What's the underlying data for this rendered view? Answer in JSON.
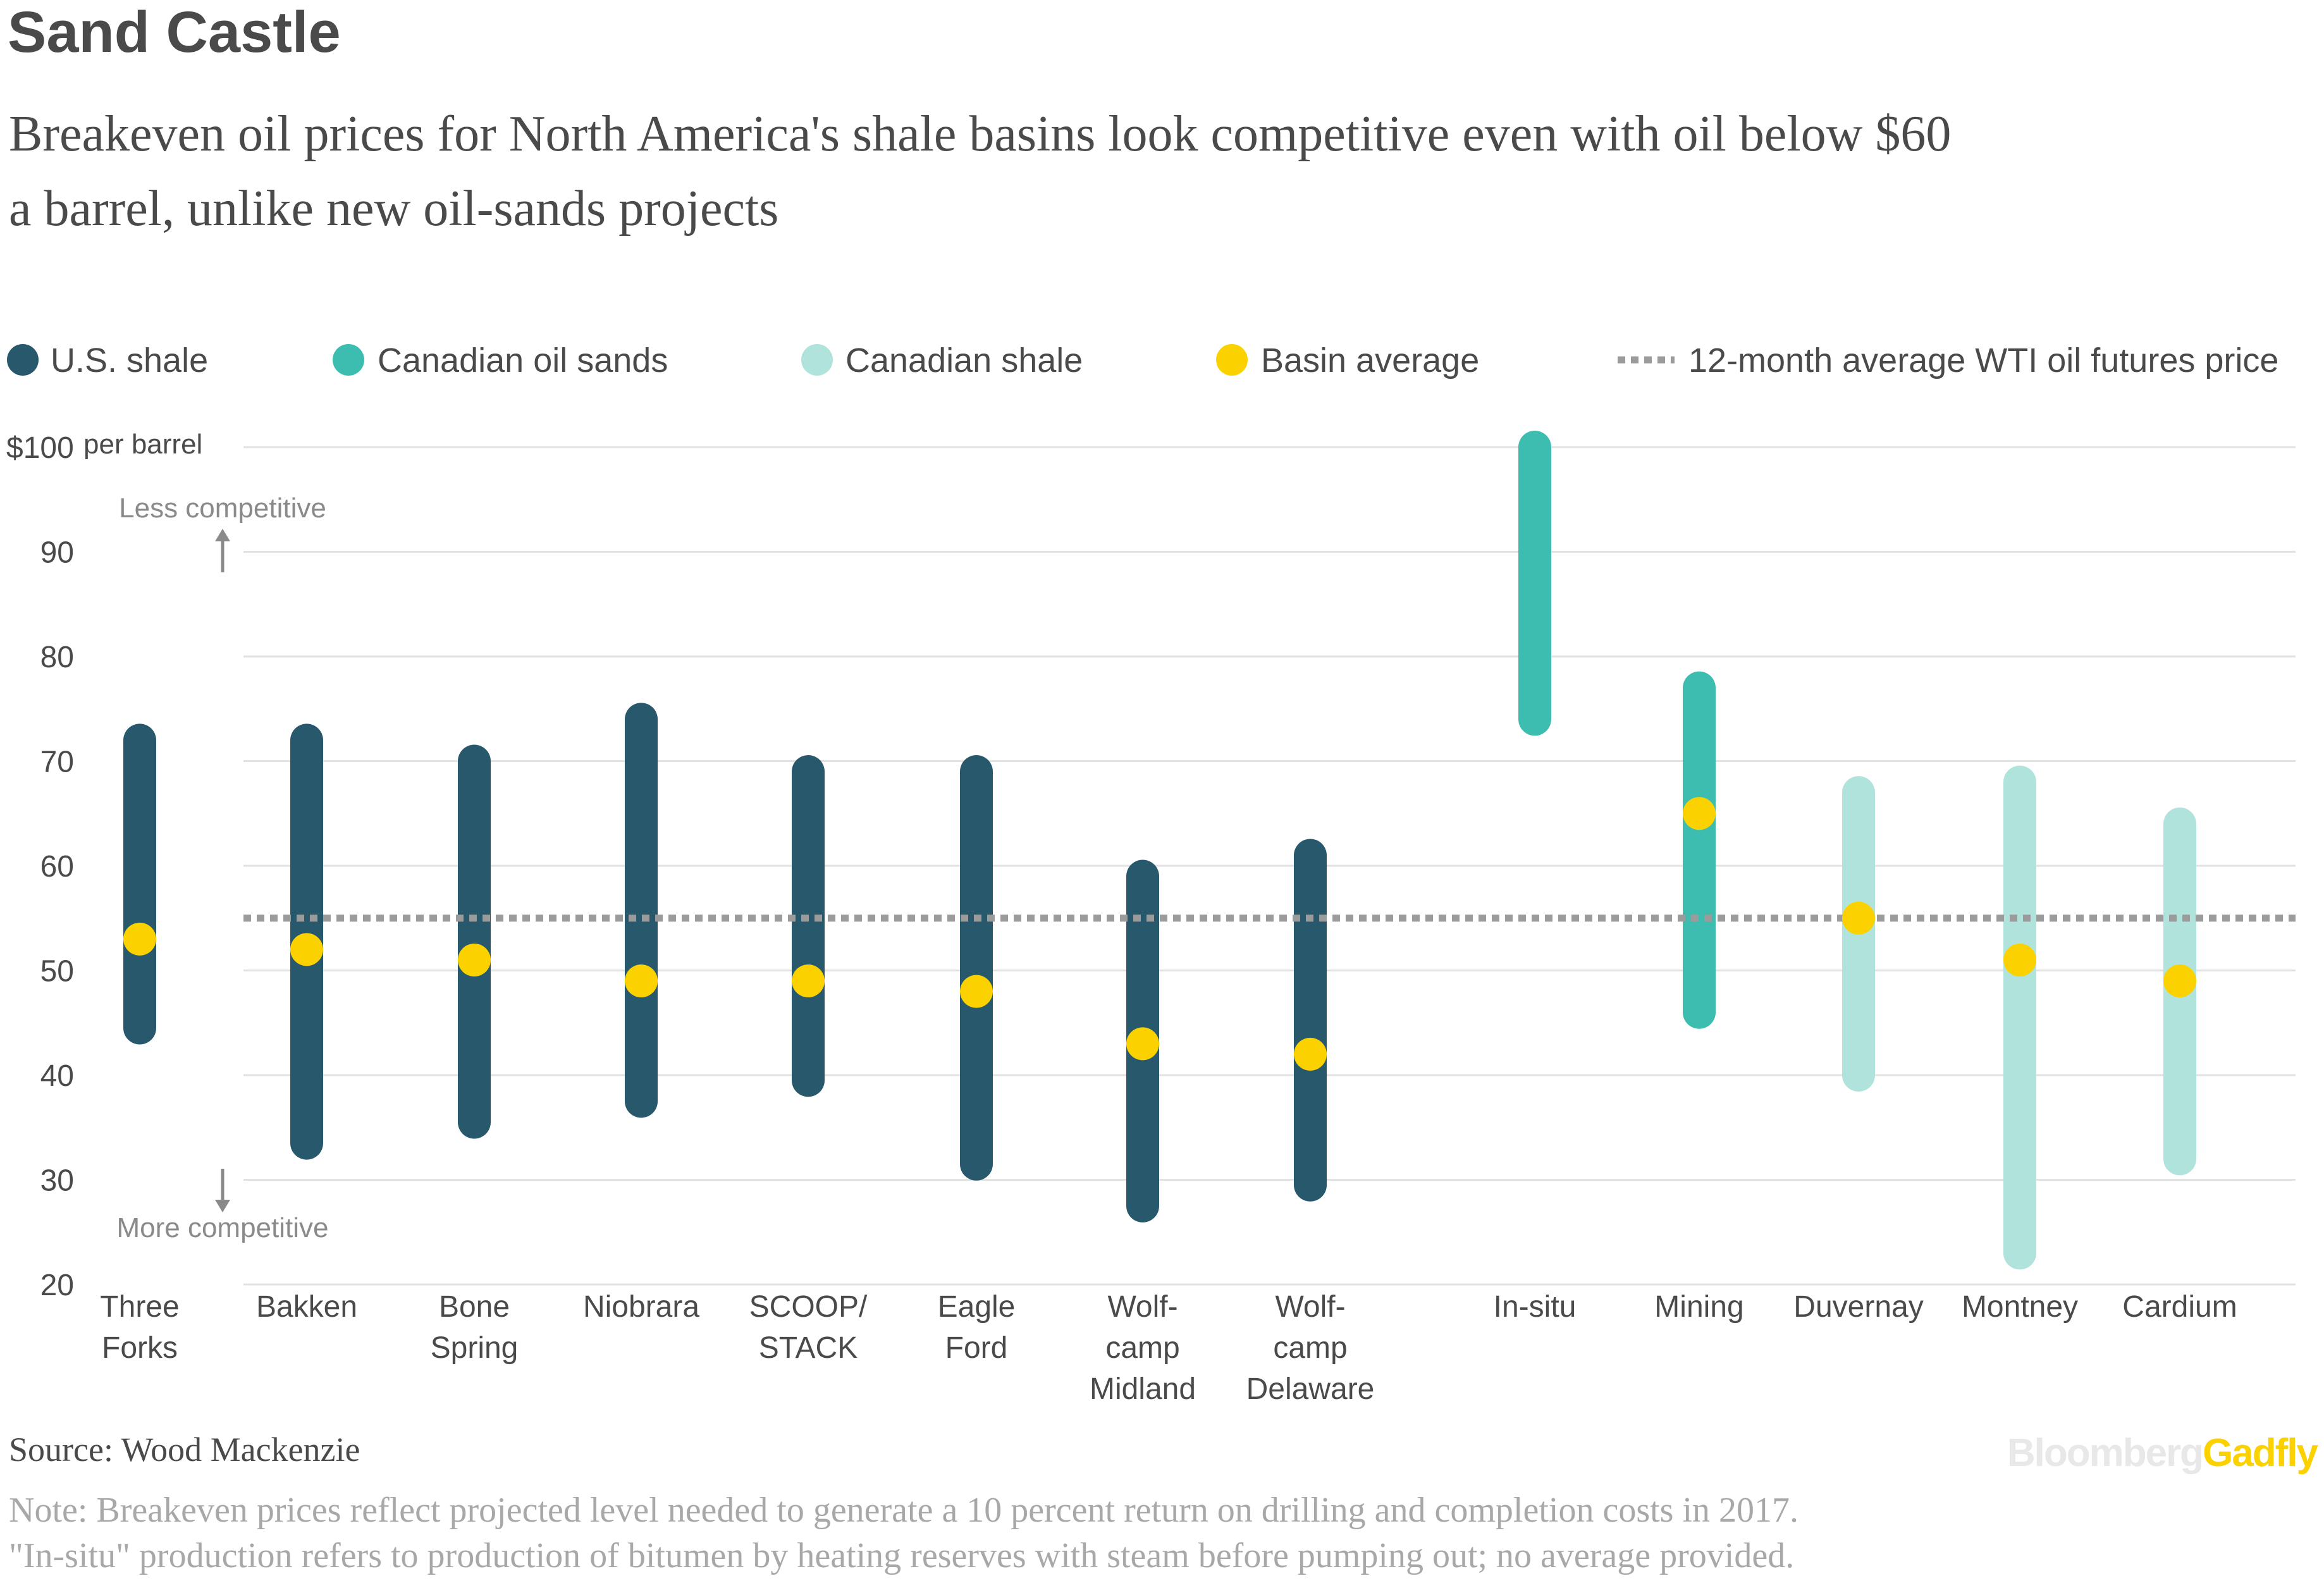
{
  "header": {
    "title": "Sand Castle",
    "subtitle_line1": "Breakeven oil prices for North America's shale basins look competitive even with oil below $60",
    "subtitle_line2": "a barrel, unlike new oil-sands projects"
  },
  "legend": {
    "placement": "top",
    "items": [
      {
        "label": "U.S. shale",
        "color": "#27586b",
        "marker": "dot"
      },
      {
        "label": "Canadian oil sands",
        "color": "#3dbdb0",
        "marker": "dot"
      },
      {
        "label": "Canadian shale",
        "color": "#b1e3dd",
        "marker": "dot"
      },
      {
        "label": "Basin average",
        "color": "#fbd200",
        "marker": "dot"
      },
      {
        "label": "12-month average WTI oil futures price",
        "color": "#9b9b9b",
        "marker": "dotted-line"
      }
    ]
  },
  "annotations": {
    "y_unit": "per barrel",
    "less_competitive": "Less competitive",
    "more_competitive": "More competitive"
  },
  "chart_data": {
    "type": "range",
    "title": "Sand Castle",
    "ylabel": "per barrel",
    "ylim": [
      20,
      100
    ],
    "yticks": [
      20,
      30,
      40,
      50,
      60,
      70,
      80,
      90,
      100
    ],
    "ytick_labels": [
      "20",
      "30",
      "40",
      "50",
      "60",
      "70",
      "80",
      "90",
      "$100"
    ],
    "grid": true,
    "reference_line": {
      "label": "12-month average WTI oil futures price",
      "value": 55
    },
    "categories": [
      {
        "lines": [
          "Three",
          "Forks"
        ],
        "group": "U.S. shale",
        "low": 44.5,
        "high": 72,
        "average": 53
      },
      {
        "lines": [
          "Bakken"
        ],
        "group": "U.S. shale",
        "low": 33.5,
        "high": 72,
        "average": 52
      },
      {
        "lines": [
          "Bone",
          "Spring"
        ],
        "group": "U.S. shale",
        "low": 35.5,
        "high": 70,
        "average": 51
      },
      {
        "lines": [
          "Niobrara"
        ],
        "group": "U.S. shale",
        "low": 37.5,
        "high": 74,
        "average": 49
      },
      {
        "lines": [
          "SCOOP/",
          "STACK"
        ],
        "group": "U.S. shale",
        "low": 39.5,
        "high": 69,
        "average": 49
      },
      {
        "lines": [
          "Eagle",
          "Ford"
        ],
        "group": "U.S. shale",
        "low": 31.5,
        "high": 69,
        "average": 48
      },
      {
        "lines": [
          "Wolf-",
          "camp",
          "Midland"
        ],
        "group": "U.S. shale",
        "low": 27.5,
        "high": 59,
        "average": 43
      },
      {
        "lines": [
          "Wolf-",
          "camp",
          "Delaware"
        ],
        "group": "U.S. shale",
        "low": 29.5,
        "high": 61,
        "average": 42
      },
      {
        "lines": [
          "In-situ"
        ],
        "group": "Canadian oil sands",
        "low": 74,
        "high": 100,
        "average": null
      },
      {
        "lines": [
          "Mining"
        ],
        "group": "Canadian oil sands",
        "low": 46,
        "high": 77,
        "average": 65
      },
      {
        "lines": [
          "Duvernay"
        ],
        "group": "Canadian shale",
        "low": 40,
        "high": 67,
        "average": 55
      },
      {
        "lines": [
          "Montney"
        ],
        "group": "Canadian shale",
        "low": 23,
        "high": 68,
        "average": 51
      },
      {
        "lines": [
          "Cardium"
        ],
        "group": "Canadian shale",
        "low": 32,
        "high": 64,
        "average": 49
      }
    ]
  },
  "footer": {
    "source": "Source: Wood Mackenzie",
    "note_line1": "Note: Breakeven prices reflect projected level needed to generate a 10 percent return on drilling and completion costs in 2017.",
    "note_line2": "\"In-situ\" production refers to production of bitumen by heating reserves with steam before pumping out; no average provided.",
    "logo_part1": "Bloomberg",
    "logo_part2": "Gadfly"
  },
  "colors": {
    "us_shale": "#27586b",
    "oil_sands": "#3dbdb0",
    "canadian_shale": "#b1e3dd",
    "average": "#fbd200",
    "reference": "#9b9b9b",
    "grid": "#e2e2e2",
    "logo_gray": "#e8e8e8",
    "logo_yellow": "#fbd200",
    "note_gray": "#a8a8a8"
  }
}
